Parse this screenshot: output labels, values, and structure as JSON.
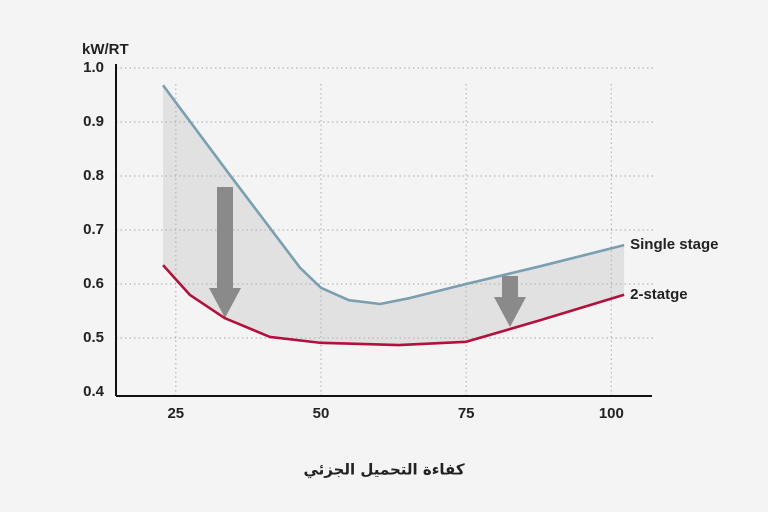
{
  "chart_data": {
    "type": "line",
    "y_label": "kW/RT",
    "x_label": "كفاءة التحميل الجزئي",
    "xlim": [
      14.7,
      107
    ],
    "xticks": [
      25,
      50,
      75,
      100
    ],
    "ylim": [
      0.4,
      1.0
    ],
    "yticks": [
      0.4,
      0.5,
      0.6,
      0.7,
      0.8,
      0.9,
      {
        "value": 1,
        "label": "1.0"
      }
    ],
    "grid": true,
    "series": [
      {
        "name": "Single stage",
        "color": "#7a9fb1",
        "x": [
          22.8,
          34.3,
          46.4,
          50,
          54.8,
          60.2,
          65.3,
          75,
          87.8,
          102.2
        ],
        "values": [
          0.968,
          0.802,
          0.63,
          0.593,
          0.57,
          0.563,
          0.574,
          0.6,
          0.633,
          0.672
        ]
      },
      {
        "name": "2-statge",
        "color": "#b3103d",
        "x": [
          22.8,
          27.4,
          33.4,
          41.2,
          50,
          63.4,
          75,
          87.8,
          102.2
        ],
        "values": [
          0.635,
          0.58,
          0.537,
          0.502,
          0.491,
          0.487,
          0.493,
          0.533,
          0.58
        ]
      }
    ]
  }
}
